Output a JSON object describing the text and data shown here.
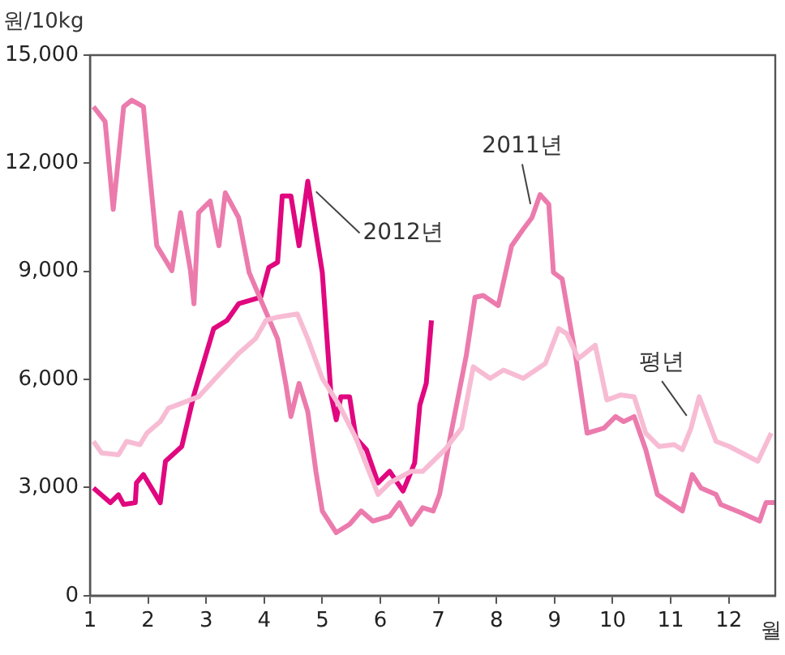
{
  "chart_data": {
    "type": "line",
    "ylabel": "원/10kg",
    "xlabel": "월",
    "xlim": [
      1,
      12.8
    ],
    "xticks": [
      1,
      2,
      3,
      4,
      5,
      6,
      7,
      8,
      9,
      10,
      11,
      12
    ],
    "ylim": [
      0,
      15000
    ],
    "yticks": [
      0,
      {
        "value": 3000,
        "label": "3,000"
      },
      {
        "value": 6000,
        "label": "6,000"
      },
      {
        "value": 9000,
        "label": "9,000"
      },
      {
        "value": 12000,
        "label": "12,000"
      },
      {
        "value": 15000,
        "label": "15,000"
      }
    ],
    "grid": false,
    "legend": false,
    "marker": "none",
    "line_style": "solid",
    "series": [
      {
        "name": "평년",
        "color": "#f7bcd4",
        "x": [
          1.06,
          1.2,
          1.49,
          1.63,
          1.86,
          1.98,
          2.21,
          2.35,
          2.58,
          2.87,
          3.16,
          3.56,
          3.85,
          4.03,
          4.23,
          4.57,
          4.75,
          5.0,
          5.29,
          5.58,
          5.96,
          6.16,
          6.53,
          6.73,
          7.11,
          7.4,
          7.6,
          7.89,
          8.12,
          8.46,
          8.84,
          9.07,
          9.21,
          9.41,
          9.7,
          9.9,
          10.14,
          10.37,
          10.57,
          10.8,
          11.06,
          11.2,
          11.35,
          11.49,
          11.78,
          12.01,
          12.5,
          12.73
        ],
        "values": [
          4280,
          3960,
          3910,
          4280,
          4190,
          4510,
          4830,
          5200,
          5340,
          5520,
          6030,
          6720,
          7130,
          7640,
          7730,
          7820,
          7130,
          6030,
          5290,
          4370,
          2810,
          3130,
          3450,
          3450,
          4050,
          4650,
          6350,
          6030,
          6260,
          6030,
          6440,
          7410,
          7270,
          6580,
          6950,
          5430,
          5570,
          5520,
          4510,
          4140,
          4190,
          4050,
          4650,
          5520,
          4280,
          4140,
          3730,
          4510
        ]
      },
      {
        "name": "2011년",
        "color": "#ec7bad",
        "x": [
          1.06,
          1.26,
          1.4,
          1.58,
          1.72,
          1.92,
          2.01,
          2.15,
          2.41,
          2.56,
          2.73,
          2.79,
          2.87,
          3.07,
          3.22,
          3.33,
          3.56,
          3.74,
          4.03,
          4.23,
          4.37,
          4.46,
          4.6,
          4.75,
          4.89,
          5.0,
          5.24,
          5.47,
          5.67,
          5.87,
          6.16,
          6.33,
          6.53,
          6.73,
          6.91,
          7.02,
          7.2,
          7.48,
          7.63,
          7.77,
          8.03,
          8.26,
          8.46,
          8.61,
          8.75,
          8.9,
          8.98,
          9.13,
          9.36,
          9.56,
          9.85,
          10.05,
          10.19,
          10.37,
          10.57,
          10.77,
          11.2,
          11.37,
          11.52,
          11.78,
          11.86,
          12.21,
          12.53,
          12.64,
          12.79
        ],
        "values": [
          13570,
          13160,
          10720,
          13570,
          13750,
          13570,
          12010,
          9710,
          9020,
          10630,
          9020,
          8100,
          10630,
          10950,
          9710,
          11180,
          10490,
          8970,
          7870,
          7130,
          5890,
          4970,
          5890,
          5110,
          3450,
          2350,
          1750,
          1980,
          2350,
          2070,
          2210,
          2580,
          1980,
          2440,
          2350,
          2810,
          4370,
          6670,
          8280,
          8330,
          8050,
          9710,
          10170,
          10490,
          11130,
          10860,
          8970,
          8790,
          6670,
          4510,
          4650,
          4970,
          4830,
          4970,
          4050,
          2810,
          2350,
          3360,
          2990,
          2810,
          2530,
          2300,
          2070,
          2580,
          2580
        ]
      },
      {
        "name": "2012년",
        "color": "#e0077f",
        "x": [
          1.06,
          1.35,
          1.49,
          1.58,
          1.78,
          1.8,
          1.92,
          2.21,
          2.3,
          2.58,
          2.79,
          3.13,
          3.36,
          3.56,
          3.94,
          4.08,
          4.23,
          4.31,
          4.46,
          4.6,
          4.75,
          5.0,
          5.15,
          5.24,
          5.32,
          5.47,
          5.58,
          5.76,
          5.96,
          6.16,
          6.39,
          6.59,
          6.68,
          6.79,
          6.88
        ],
        "values": [
          2990,
          2580,
          2800,
          2530,
          2580,
          3130,
          3360,
          2580,
          3730,
          4140,
          5570,
          7410,
          7640,
          8100,
          8280,
          9110,
          9250,
          11090,
          11090,
          9710,
          11500,
          8970,
          5570,
          4880,
          5520,
          5520,
          4370,
          4050,
          3130,
          3450,
          2900,
          3680,
          5290,
          5890,
          7640
        ]
      }
    ]
  }
}
